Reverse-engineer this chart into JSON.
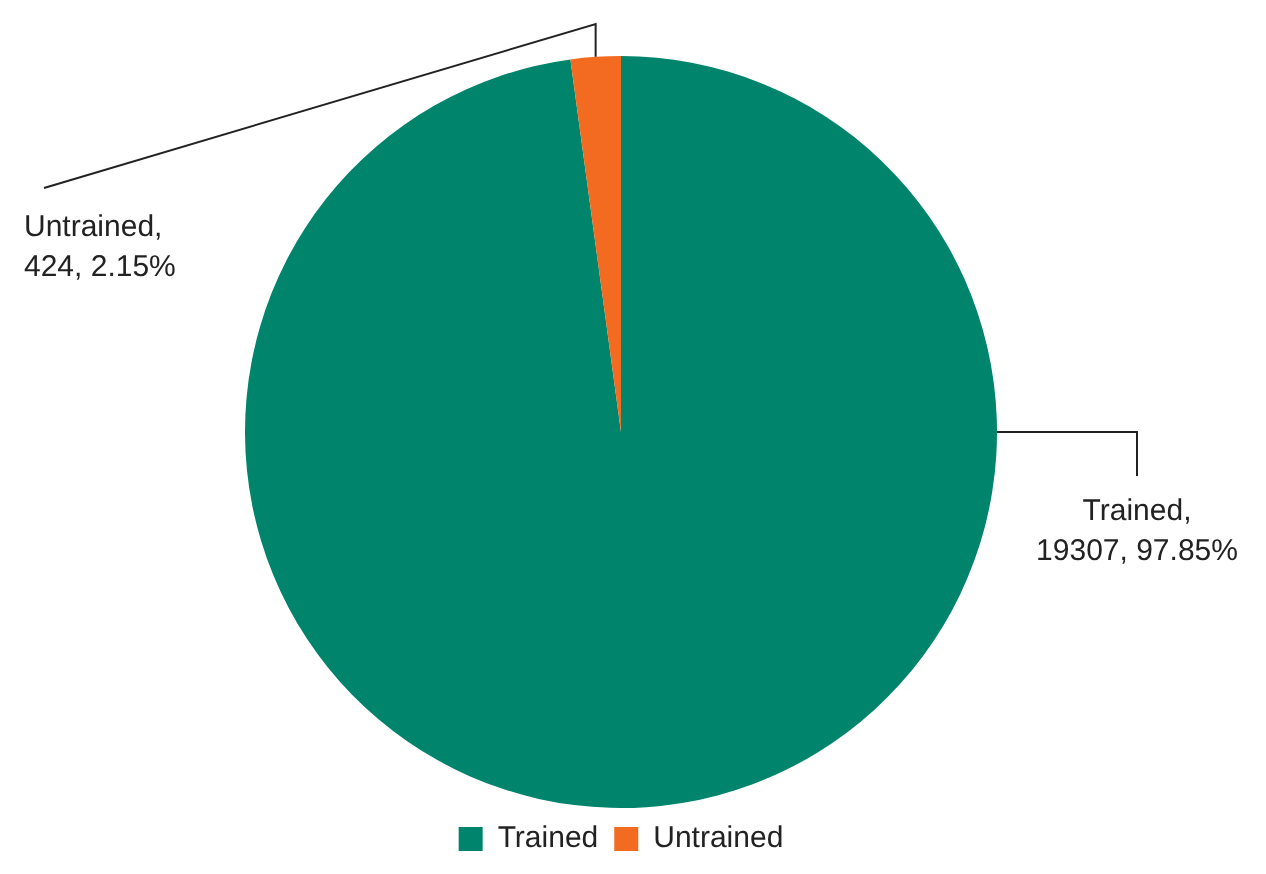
{
  "chart_data": {
    "type": "pie",
    "categories": [
      "Trained",
      "Untrained"
    ],
    "values": [
      19307,
      424
    ],
    "colors": [
      "#00846b",
      "#f26b21"
    ],
    "value_labels": [
      "Trained, 19307, 97.85%",
      "Untrained, 424, 2.15%"
    ],
    "legend": "bottom"
  }
}
